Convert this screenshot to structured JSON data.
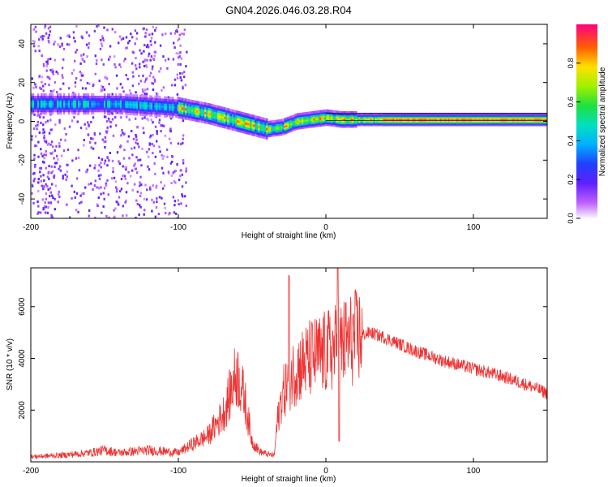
{
  "title": "GN04.2026.046.03.28.R04",
  "chart_data": [
    {
      "type": "heatmap",
      "name": "spectrogram",
      "title": "GN04.2026.046.03.28.R04",
      "xlabel": "Height of straight line (km)",
      "ylabel": "Frequency (Hz)",
      "xlim": [
        -200,
        150
      ],
      "ylim": [
        -50,
        50
      ],
      "xticks": [
        -200,
        -100,
        0,
        100
      ],
      "yticks": [
        -40,
        -20,
        0,
        20,
        40
      ],
      "colorbar": {
        "label": "Normalized spectral amplitude",
        "range": [
          0,
          1
        ],
        "ticks": [
          0.0,
          0.2,
          0.4,
          0.6,
          0.8
        ]
      },
      "ridge": {
        "description": "frequency of peak spectral amplitude vs height",
        "x": [
          -200,
          -180,
          -160,
          -140,
          -120,
          -100,
          -80,
          -70,
          -60,
          -50,
          -40,
          -30,
          -20,
          -10,
          0,
          10,
          20,
          40,
          60,
          80,
          100,
          120,
          150
        ],
        "y": [
          9,
          9,
          9,
          9,
          8,
          7,
          4,
          2,
          0,
          -2,
          -4,
          -3,
          0,
          1,
          2,
          1,
          1,
          1,
          1,
          1,
          1,
          1,
          1
        ]
      }
    },
    {
      "type": "line",
      "name": "snr",
      "xlabel": "Height of straight line (km)",
      "ylabel": "SNR (10 * v/v)",
      "xlim": [
        -200,
        150
      ],
      "ylim": [
        0,
        7500
      ],
      "xticks": [
        -200,
        -100,
        0,
        100
      ],
      "yticks": [
        2000,
        4000,
        6000
      ],
      "color": "#ee3333",
      "envelope": {
        "x": [
          -200,
          -180,
          -160,
          -150,
          -140,
          -120,
          -100,
          -90,
          -80,
          -70,
          -65,
          -62,
          -60,
          -55,
          -50,
          -45,
          -40,
          -35,
          -33,
          -30,
          -25,
          -20,
          -15,
          -10,
          0,
          10,
          20,
          25,
          30,
          35,
          40,
          60,
          80,
          100,
          120,
          140,
          150
        ],
        "values": [
          200,
          250,
          350,
          450,
          350,
          450,
          350,
          700,
          1000,
          1800,
          2600,
          3200,
          3400,
          2400,
          800,
          400,
          300,
          250,
          1500,
          2500,
          3200,
          3600,
          3800,
          4000,
          4200,
          4500,
          4800,
          4900,
          5000,
          4900,
          4800,
          4300,
          3900,
          3600,
          3300,
          2900,
          2650
        ]
      },
      "spikes": [
        {
          "x": -25,
          "y": 7200
        },
        {
          "x": 8,
          "y": 7500
        },
        {
          "x": 9,
          "y": 800
        }
      ]
    }
  ]
}
